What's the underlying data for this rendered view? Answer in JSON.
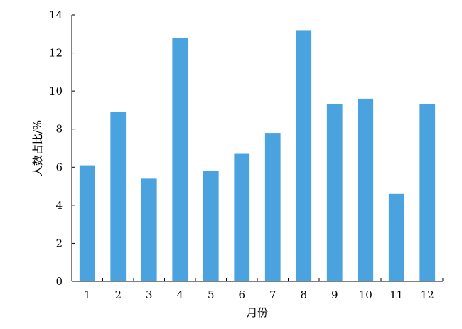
{
  "chart_data": {
    "type": "bar",
    "categories": [
      "1",
      "2",
      "3",
      "4",
      "5",
      "6",
      "7",
      "8",
      "9",
      "10",
      "11",
      "12"
    ],
    "values": [
      6.1,
      8.9,
      5.4,
      12.8,
      5.8,
      6.7,
      7.8,
      13.2,
      9.3,
      9.6,
      4.6,
      9.3
    ],
    "xlabel": "月份",
    "ylabel": "人数占比/%",
    "ylim": [
      0,
      14
    ],
    "yticks": [
      0,
      2,
      4,
      6,
      8,
      10,
      12,
      14
    ],
    "bar_color": "#4aa3df",
    "grid": false,
    "legend": "none"
  }
}
